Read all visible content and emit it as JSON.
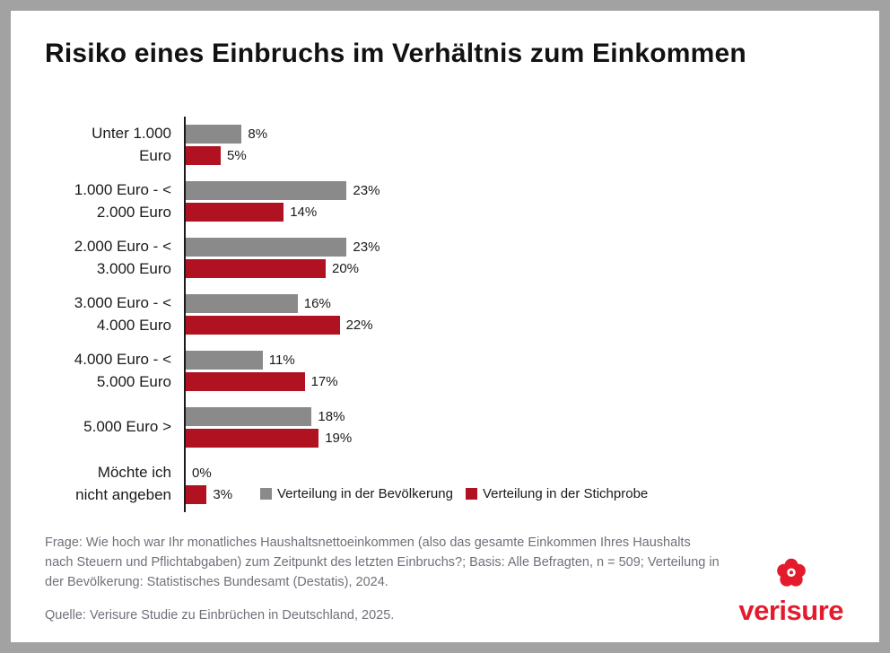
{
  "page": {
    "title": "Risiko eines Einbruchs im Verhältnis zum Einkommen"
  },
  "chart_data": {
    "type": "bar",
    "orientation": "horizontal",
    "categories": [
      "Unter 1.000\nEuro",
      "1.000 Euro - <\n2.000 Euro",
      "2.000 Euro - <\n3.000 Euro",
      "3.000 Euro - <\n4.000 Euro",
      "4.000 Euro - <\n5.000 Euro",
      "5.000 Euro >",
      "Möchte ich\nnicht angeben"
    ],
    "series": [
      {
        "name": "Verteilung in der Bevölkerung",
        "color": "#8a8a8a",
        "values": [
          8,
          23,
          23,
          16,
          11,
          18,
          0
        ]
      },
      {
        "name": "Verteilung in der Stichprobe",
        "color": "#b01222",
        "values": [
          5,
          14,
          20,
          22,
          17,
          19,
          3
        ]
      }
    ],
    "value_suffix": "%",
    "xlim": [
      0,
      25
    ],
    "legend_position": "inside-bottom",
    "grid": false
  },
  "footer": {
    "footnote": "Frage: Wie hoch war Ihr monatliches Haushaltsnettoeinkommen (also das gesamte Einkommen Ihres Haushalts nach Steuern und Pflichtabgaben) zum Zeitpunkt des letzten Einbruchs?; Basis: Alle Befragten, n = 509; Verteilung in der Bevölkerung: Statistisches Bundesamt (Destatis), 2024.",
    "source": "Quelle: Verisure Studie zu Einbrüchen in Deutschland, 2025."
  },
  "logo": {
    "text": "verisure",
    "color": "#e31b2d"
  }
}
